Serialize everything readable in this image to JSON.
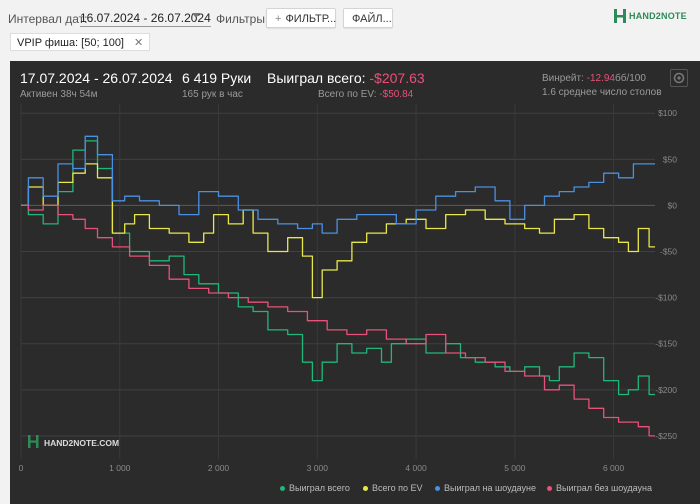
{
  "toolbar": {
    "interval_label": "Интервал дат:",
    "date_range": "16.07.2024 - 26.07.2024",
    "filters_label": "Фильтры:",
    "filter_button": "ФИЛЬТР...",
    "file_button": "ФАЙЛ...",
    "logo_text": "HAND2NOTE"
  },
  "active_filter": {
    "label": "VPIP фиша: [50; 100]"
  },
  "stats": {
    "period": "17.07.2024 - 26.07.2024",
    "active": "Активен 38ч 54м",
    "hands": "6 419 Руки",
    "hands_per_hour": "165 рук в час",
    "won_label": "Выиграл всего:",
    "won_value": "-$207.63",
    "ev_label": "Всего по EV:",
    "ev_value": "-$50.84",
    "winrate_label": "Винрейт:",
    "winrate_value": "-12.94",
    "winrate_unit": "бб/100",
    "tables": "1.6 среднее число столов"
  },
  "watermark": "HAND2NOTE.COM",
  "colors": {
    "won": "#20b77a",
    "ev": "#e8e84a",
    "showdown": "#4a90e2",
    "nonshowdown": "#e8517a"
  },
  "chart_data": {
    "type": "line",
    "xlabel": "",
    "ylabel": "",
    "xlim": [
      0,
      6419
    ],
    "ylim": [
      -275,
      110
    ],
    "x_ticks": [
      0,
      1000,
      2000,
      3000,
      4000,
      5000,
      6000
    ],
    "x_tick_labels": [
      "0",
      "1 000",
      "2 000",
      "3 000",
      "4 000",
      "5 000",
      "6 000"
    ],
    "y_ticks": [
      100,
      50,
      0,
      -50,
      -100,
      -150,
      -200,
      -250
    ],
    "y_tick_labels": [
      "$100",
      "$50",
      "$0",
      "-$50",
      "-$100",
      "-$150",
      "-$200",
      "-$250"
    ],
    "grid": true,
    "legend_position": "bottom-right",
    "series": [
      {
        "name": "Выиграл всего",
        "color": "#20b77a",
        "x": [
          0,
          150,
          300,
          450,
          600,
          700,
          850,
          1000,
          1200,
          1400,
          1600,
          1700,
          1900,
          2100,
          2300,
          2400,
          2600,
          2800,
          2900,
          3000,
          3100,
          3300,
          3400,
          3600,
          3700,
          3800,
          4000,
          4200,
          4400,
          4500,
          4700,
          4900,
          5000,
          5200,
          5300,
          5400,
          5500,
          5700,
          5800,
          6000,
          6100,
          6200,
          6300,
          6419
        ],
        "y": [
          0,
          -10,
          -20,
          15,
          60,
          70,
          40,
          -30,
          -50,
          -60,
          -55,
          -75,
          -85,
          -95,
          -110,
          -115,
          -135,
          -140,
          -170,
          -190,
          -170,
          -150,
          -160,
          -155,
          -170,
          -150,
          -145,
          -160,
          -150,
          -165,
          -170,
          -175,
          -180,
          -175,
          -185,
          -190,
          -175,
          -160,
          -165,
          -190,
          -205,
          -200,
          -185,
          -205
        ]
      },
      {
        "name": "Всего по EV",
        "color": "#e8e84a",
        "x": [
          0,
          150,
          300,
          450,
          600,
          700,
          850,
          1000,
          1100,
          1200,
          1400,
          1600,
          1800,
          1900,
          2000,
          2200,
          2300,
          2400,
          2600,
          2800,
          2900,
          3000,
          3100,
          3300,
          3400,
          3600,
          3800,
          4000,
          4200,
          4400,
          4600,
          4800,
          5000,
          5200,
          5300,
          5500,
          5700,
          5800,
          6000,
          6100,
          6200,
          6300,
          6419
        ],
        "y": [
          0,
          20,
          0,
          25,
          35,
          45,
          30,
          -30,
          -20,
          -10,
          -25,
          -30,
          -40,
          -30,
          -10,
          -20,
          -5,
          -30,
          -50,
          -35,
          -55,
          -100,
          -70,
          -60,
          -40,
          -30,
          -20,
          -15,
          -25,
          -10,
          -5,
          -15,
          -20,
          -25,
          -30,
          -15,
          -10,
          -25,
          -35,
          -40,
          -50,
          -25,
          -45
        ]
      },
      {
        "name": "Выиграл на шоудауне",
        "color": "#4a90e2",
        "x": [
          0,
          150,
          300,
          450,
          600,
          700,
          850,
          1000,
          1100,
          1300,
          1500,
          1700,
          1900,
          2100,
          2300,
          2500,
          2700,
          2900,
          3000,
          3100,
          3300,
          3500,
          3700,
          3900,
          4100,
          4300,
          4500,
          4700,
          4900,
          5000,
          5200,
          5400,
          5500,
          5700,
          5800,
          6000,
          6100,
          6300,
          6419
        ],
        "y": [
          0,
          30,
          10,
          45,
          40,
          75,
          55,
          5,
          10,
          5,
          0,
          -10,
          15,
          10,
          -5,
          -15,
          -20,
          -25,
          -20,
          -30,
          -15,
          -10,
          -10,
          -20,
          -5,
          10,
          15,
          20,
          5,
          -15,
          0,
          10,
          15,
          20,
          25,
          35,
          30,
          45,
          45
        ]
      },
      {
        "name": "Выиграл без шоудауна",
        "color": "#e8517a",
        "x": [
          0,
          150,
          300,
          450,
          600,
          700,
          850,
          1000,
          1200,
          1400,
          1600,
          1800,
          2000,
          2200,
          2400,
          2600,
          2800,
          3000,
          3200,
          3400,
          3600,
          3800,
          4000,
          4200,
          4400,
          4600,
          4800,
          5000,
          5200,
          5400,
          5500,
          5700,
          5800,
          6000,
          6100,
          6200,
          6300,
          6419
        ],
        "y": [
          0,
          -5,
          0,
          -10,
          -15,
          -25,
          -35,
          -45,
          -55,
          -65,
          -80,
          -90,
          -95,
          -100,
          -105,
          -110,
          -115,
          -125,
          -135,
          -140,
          -135,
          -145,
          -150,
          -140,
          -160,
          -165,
          -170,
          -180,
          -185,
          -200,
          -195,
          -210,
          -220,
          -230,
          -235,
          -235,
          -240,
          -250
        ]
      }
    ]
  },
  "legend": {
    "won": "Выиграл всего",
    "ev": "Всего по EV",
    "showdown": "Выиграл на шоудауне",
    "nonshowdown": "Выиграл без шоудауна"
  }
}
